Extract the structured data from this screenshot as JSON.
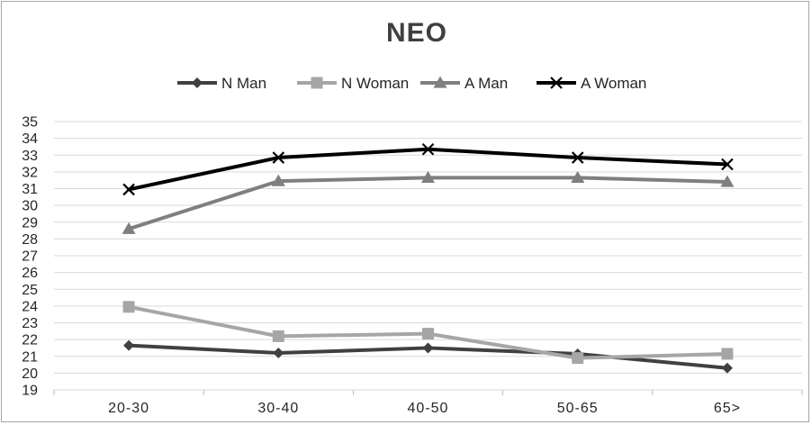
{
  "chart_data": {
    "type": "line",
    "title": "NEO",
    "xlabel": "",
    "ylabel": "",
    "categories": [
      "20-30",
      "30-40",
      "40-50",
      "50-65",
      "65>"
    ],
    "ylim": [
      19,
      35
    ],
    "y_ticks": [
      19,
      20,
      21,
      22,
      23,
      24,
      25,
      26,
      27,
      28,
      29,
      30,
      31,
      32,
      33,
      34,
      35
    ],
    "grid": true,
    "legend_position": "top",
    "series": [
      {
        "name": "N Man",
        "values": [
          21.65,
          21.2,
          21.5,
          21.15,
          20.3
        ],
        "color": "#404040",
        "marker": "diamond"
      },
      {
        "name": "N Woman",
        "values": [
          23.95,
          22.2,
          22.35,
          20.9,
          21.15
        ],
        "color": "#a6a6a6",
        "marker": "square"
      },
      {
        "name": "A Man",
        "values": [
          28.6,
          31.45,
          31.65,
          31.65,
          31.4
        ],
        "color": "#7f7f7f",
        "marker": "triangle"
      },
      {
        "name": "A Woman",
        "values": [
          30.95,
          32.85,
          33.35,
          32.85,
          32.45
        ],
        "color": "#000000",
        "marker": "x"
      }
    ]
  }
}
